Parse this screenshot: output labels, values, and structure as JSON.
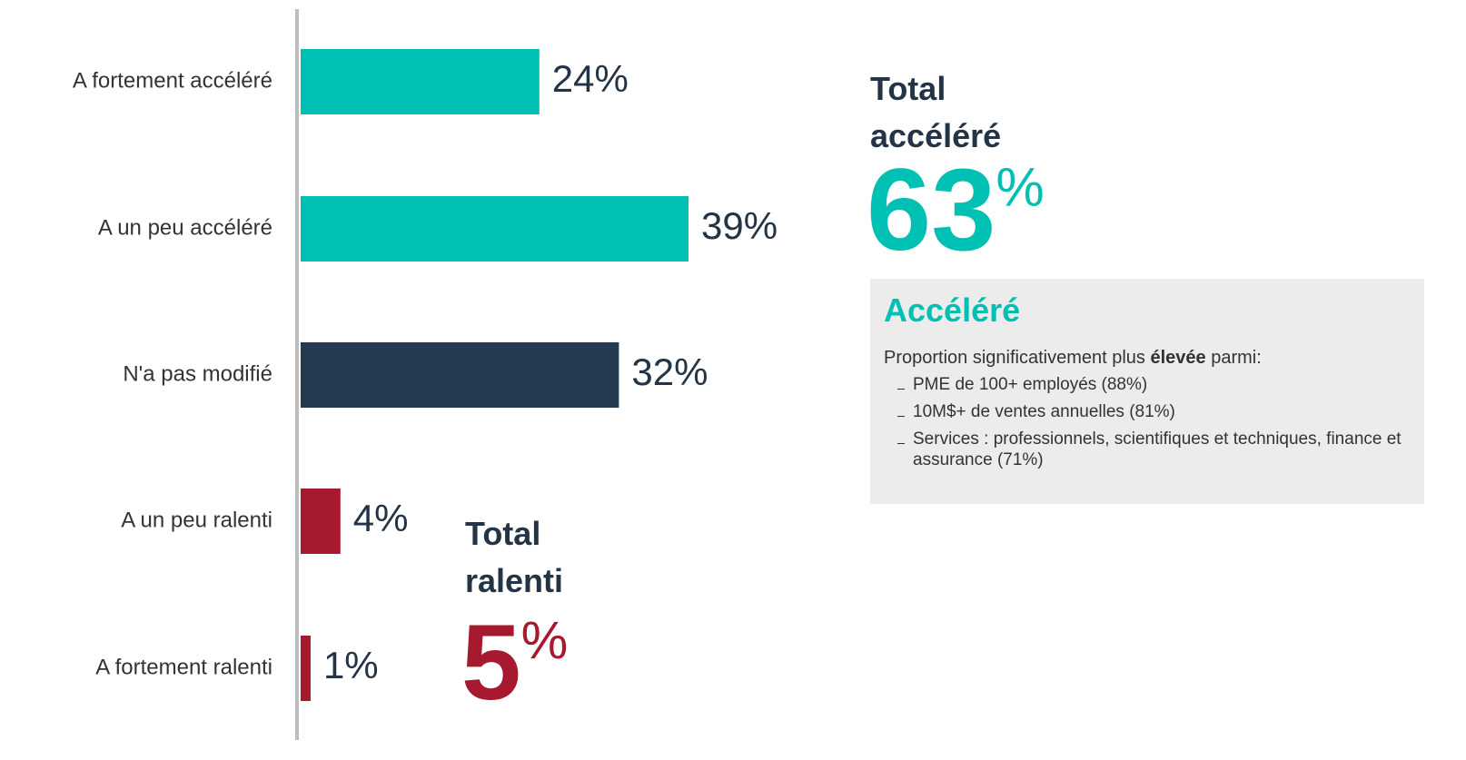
{
  "chart_data": {
    "type": "bar",
    "orientation": "horizontal",
    "categories": [
      "A fortement accéléré",
      "A un peu accéléré",
      "N'a pas modifié",
      "A un peu ralenti",
      "A fortement ralenti"
    ],
    "values": [
      24,
      39,
      32,
      4,
      1
    ],
    "value_labels": [
      "24%",
      "39%",
      "32%",
      "4%",
      "1%"
    ],
    "colors": [
      "#00bfb3",
      "#00bfb3",
      "#233a4f",
      "#a6192e",
      "#a6192e"
    ],
    "annotations": [
      {
        "lines": [
          "Total",
          "accéléré"
        ],
        "value": 63,
        "unit": "%",
        "color": "#00bfb3"
      },
      {
        "lines": [
          "Total",
          "ralenti"
        ],
        "value": 5,
        "unit": "%",
        "color": "#a6192e"
      }
    ]
  },
  "callout": {
    "heading": "Accéléré",
    "intro": [
      "Proportion significativement plus ",
      "élevée",
      " parmi:"
    ],
    "bullets": [
      "PME de 100+ employés (88%)",
      "10M$+ de ventes annuelles (81%)",
      "Services : professionnels, scientifiques et techniques, finance et assurance (71%)"
    ]
  }
}
